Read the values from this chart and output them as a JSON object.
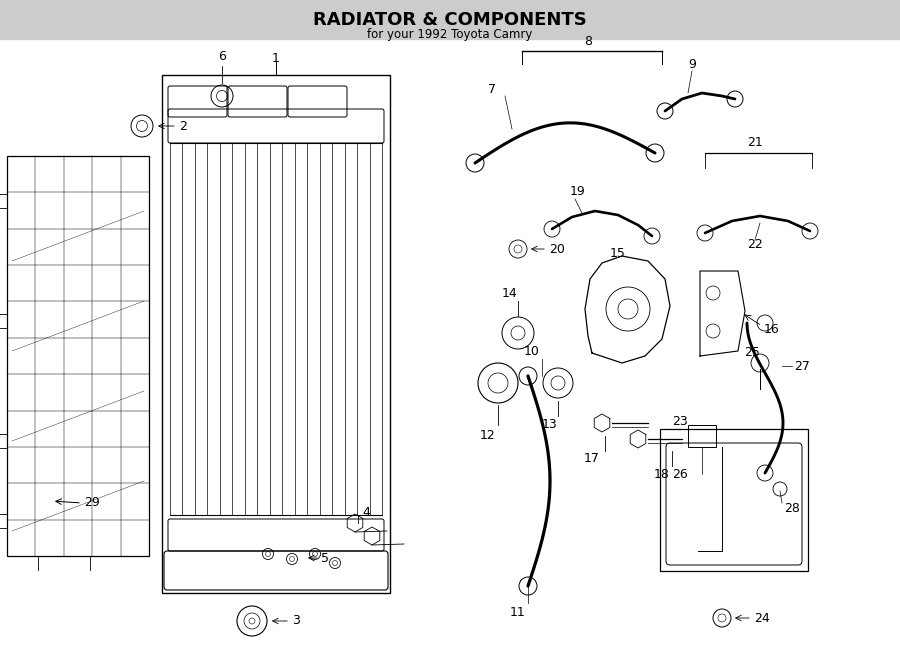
{
  "title": "RADIATOR & COMPONENTS",
  "subtitle": "for your 1992 Toyota Camry",
  "bg_color": "#ffffff",
  "line_color": "#000000",
  "fig_width": 9.0,
  "fig_height": 6.61
}
